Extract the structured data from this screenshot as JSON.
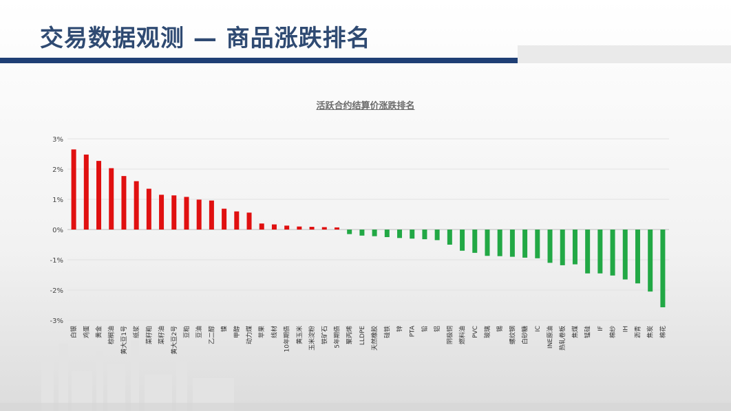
{
  "slide": {
    "title": "交易数据观测 — 商品涨跌排名"
  },
  "colors": {
    "positive": "#e01010",
    "negative": "#22a845",
    "title_blue": "#2f4a72",
    "band_blue": "#1f3f75"
  },
  "chart_data": {
    "type": "bar",
    "title": "活跃合约结算价涨跌排名",
    "ylim": [
      -3,
      3
    ],
    "yticks": [
      3,
      2,
      1,
      0,
      -1,
      -2,
      -3
    ],
    "ytick_labels": [
      "3%",
      "2%",
      "1%",
      "0%",
      "-1%",
      "-2%",
      "-3%"
    ],
    "grid": true,
    "categories": [
      "白银",
      "鸡蛋",
      "黄金",
      "棕榈油",
      "黄大豆1号",
      "纸浆",
      "菜籽粕",
      "菜籽油",
      "黄大豆2号",
      "豆粕",
      "豆油",
      "乙二醇",
      "镍",
      "甲醇",
      "动力煤",
      "苹果",
      "线材",
      "10年期债",
      "黄玉米",
      "玉米淀粉",
      "铁矿石",
      "5年期债",
      "聚丙烯",
      "LLDPE",
      "天然橡胶",
      "硅铁",
      "锌",
      "PTA",
      "铅",
      "铝",
      "阴极铜",
      "燃料油",
      "PVC",
      "玻璃",
      "锡",
      "螺纹钢",
      "白砂糖",
      "IC",
      "INE原油",
      "热轧卷板",
      "焦煤",
      "锰硅",
      "IF",
      "棉纱",
      "IH",
      "沥青",
      "焦炭",
      "棉花"
    ],
    "values": [
      2.65,
      2.48,
      2.27,
      2.03,
      1.77,
      1.6,
      1.35,
      1.15,
      1.13,
      1.08,
      0.99,
      0.96,
      0.69,
      0.6,
      0.56,
      0.2,
      0.17,
      0.13,
      0.1,
      0.09,
      0.08,
      0.07,
      -0.15,
      -0.2,
      -0.22,
      -0.25,
      -0.28,
      -0.3,
      -0.32,
      -0.35,
      -0.5,
      -0.7,
      -0.77,
      -0.87,
      -0.88,
      -0.9,
      -0.93,
      -0.95,
      -1.1,
      -1.18,
      -1.15,
      -1.45,
      -1.45,
      -1.52,
      -1.65,
      -1.78,
      -2.05,
      -2.57
    ]
  }
}
